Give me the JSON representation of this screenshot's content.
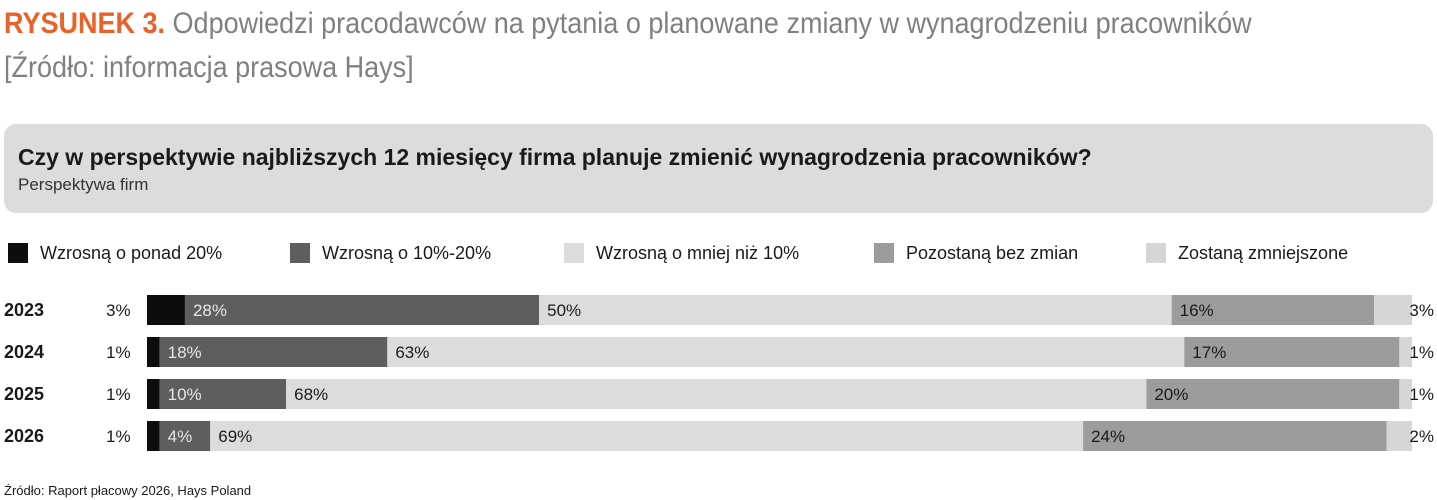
{
  "figure": {
    "label": "RYSUNEK 3.",
    "title": "Odpowiedzi pracodawców na pytania o planowane zmiany w wynagrodzeniu pracowników",
    "source_line": "[Źródło: informacja prasowa Hays]"
  },
  "question": {
    "title": "Czy w perspektywie najbliższych 12 miesięcy firma planuje zmienić wynagrodzenia pracowników?",
    "subtitle": "Perspektywa firm"
  },
  "footer": {
    "source": "Źródło: Raport płacowy 2026, Hays Poland"
  },
  "colors": {
    "accent": "#e8622a",
    "series": [
      "#0d0d0d",
      "#5e5e5e",
      "#dcdcdc",
      "#9c9c9c",
      "#d6d6d6"
    ],
    "label_light": "#e6e6e6",
    "label_dark": "#1a1a1a"
  },
  "chart_data": {
    "type": "bar",
    "orientation": "horizontal",
    "stacked": true,
    "categories": [
      "2023",
      "2024",
      "2025",
      "2026"
    ],
    "series": [
      {
        "name": "Wzrosną o ponad 20%",
        "values": [
          3,
          1,
          1,
          1
        ],
        "labels": [
          "3%",
          "1%",
          "1%",
          "1%"
        ]
      },
      {
        "name": "Wzrosną o 10%-20%",
        "values": [
          28,
          18,
          10,
          4
        ],
        "labels": [
          "28%",
          "18%",
          "10%",
          "4%"
        ]
      },
      {
        "name": "Wzrosną o mniej niż 10%",
        "values": [
          50,
          63,
          68,
          69
        ],
        "labels": [
          "50%",
          "63%",
          "68%",
          "69%"
        ]
      },
      {
        "name": "Pozostaną bez zmian",
        "values": [
          16,
          17,
          20,
          24
        ],
        "labels": [
          "16%",
          "17%",
          "20%",
          "24%"
        ]
      },
      {
        "name": "Zostaną zmniejszone",
        "values": [
          3,
          1,
          1,
          2
        ],
        "labels": [
          "3%",
          "1%",
          "1%",
          "2%"
        ]
      }
    ],
    "xlim": [
      0,
      100
    ],
    "legend_position": "top",
    "grid": false
  }
}
